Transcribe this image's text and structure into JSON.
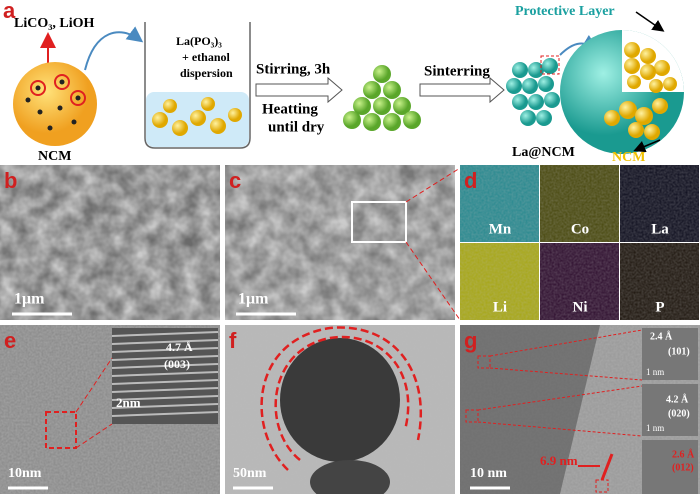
{
  "panel_a": {
    "label": "a",
    "products": "LiCO₃, LiOH",
    "core": "NCM",
    "beaker": [
      "La(PO₃)₃",
      "+ ethanol",
      "dispersion"
    ],
    "step1": "Stirring, 3h",
    "step2": [
      "Heatting",
      "until dry"
    ],
    "step3": "Sinterring",
    "coated": "La@NCM",
    "layer": "Protective Layer",
    "shell_core": "NCM"
  },
  "panel_b": {
    "label": "b",
    "scale": "1μm"
  },
  "panel_c": {
    "label": "c",
    "scale": "1μm"
  },
  "panel_d": {
    "label": "d",
    "maps": [
      "Mn",
      "Co",
      "La",
      "Li",
      "Ni",
      "P"
    ]
  },
  "panel_e": {
    "label": "e",
    "spacing": "4.7 Å",
    "plane": "(003)",
    "inset_scale": "2nm",
    "scale": "10nm"
  },
  "panel_f": {
    "label": "f",
    "scale": "50nm"
  },
  "panel_g": {
    "label": "g",
    "insets": [
      {
        "spacing": "2.4 Å",
        "plane": "(101)",
        "scale": "1 nm"
      },
      {
        "spacing": "4.2 Å",
        "plane": "(020)",
        "scale": "1 nm"
      },
      {
        "spacing": "2.6 Å",
        "plane": "(012)"
      }
    ],
    "thickness": "6.9 nm",
    "scale": "10 nm"
  }
}
